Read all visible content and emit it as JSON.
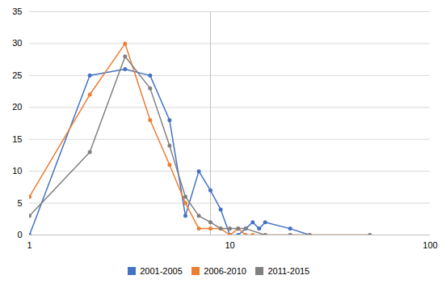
{
  "chart_data": {
    "type": "line",
    "series": [
      {
        "name": "2001-2005",
        "color": "#4472c4",
        "marker": "circle",
        "x": [
          1,
          2,
          3,
          4,
          5,
          6,
          7,
          8,
          9,
          10,
          11,
          12,
          13,
          14,
          15,
          20,
          25
        ],
        "values": [
          0,
          25,
          26,
          25,
          18,
          3,
          10,
          7,
          4,
          0,
          0,
          1,
          2,
          1,
          2,
          1,
          0
        ]
      },
      {
        "name": "2006-2010",
        "color": "#ed7d31",
        "marker": "circle",
        "x": [
          1,
          2,
          3,
          4,
          5,
          6,
          7,
          8,
          9,
          10,
          11,
          12,
          13,
          15,
          20,
          25,
          50
        ],
        "values": [
          6,
          22,
          30,
          18,
          11,
          5,
          1,
          1,
          1,
          0,
          1,
          0,
          0,
          0,
          0,
          0,
          0
        ]
      },
      {
        "name": "2011-2015",
        "color": "#808080",
        "marker": "circle",
        "x": [
          1,
          2,
          3,
          4,
          5,
          6,
          7,
          8,
          9,
          10,
          11,
          12,
          15,
          20,
          25,
          50
        ],
        "values": [
          3,
          13,
          28,
          23,
          14,
          6,
          3,
          2,
          1,
          1,
          1,
          1,
          0,
          0,
          0,
          0
        ]
      }
    ],
    "log": "x",
    "xlim": [
      1,
      100
    ],
    "xticks": [
      1,
      10,
      100
    ],
    "ylim": [
      0,
      35
    ],
    "yticks": [
      0,
      5,
      10,
      15,
      20,
      25,
      30,
      35
    ],
    "vline": 8,
    "grid": true,
    "legend": "bottom"
  }
}
